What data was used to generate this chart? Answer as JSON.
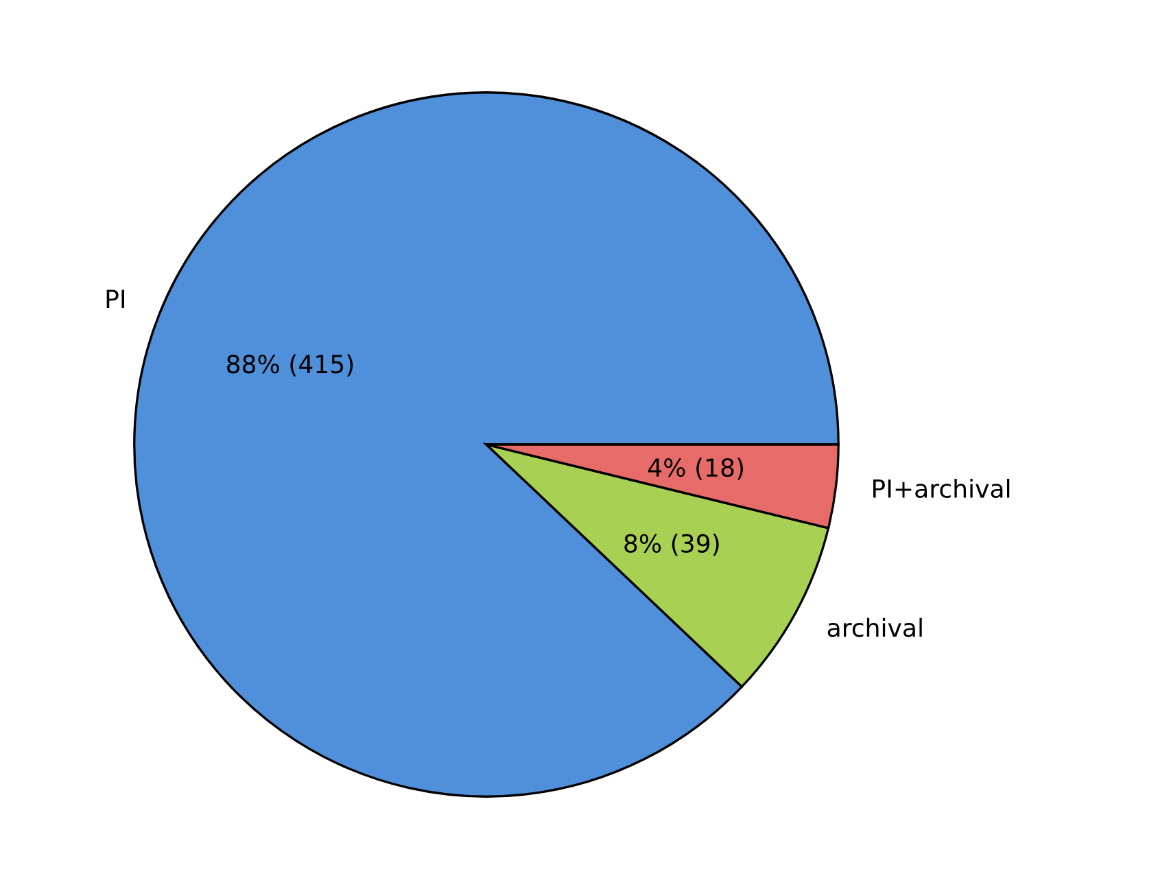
{
  "chart_data": {
    "type": "pie",
    "categories": [
      "PI",
      "archival",
      "PI+archival"
    ],
    "values": [
      415,
      39,
      18
    ],
    "colors": [
      "#508fd9",
      "#a8d052",
      "#e76b69"
    ],
    "value_labels": [
      "88% (415)",
      "8% (39)",
      "4% (18)"
    ]
  }
}
